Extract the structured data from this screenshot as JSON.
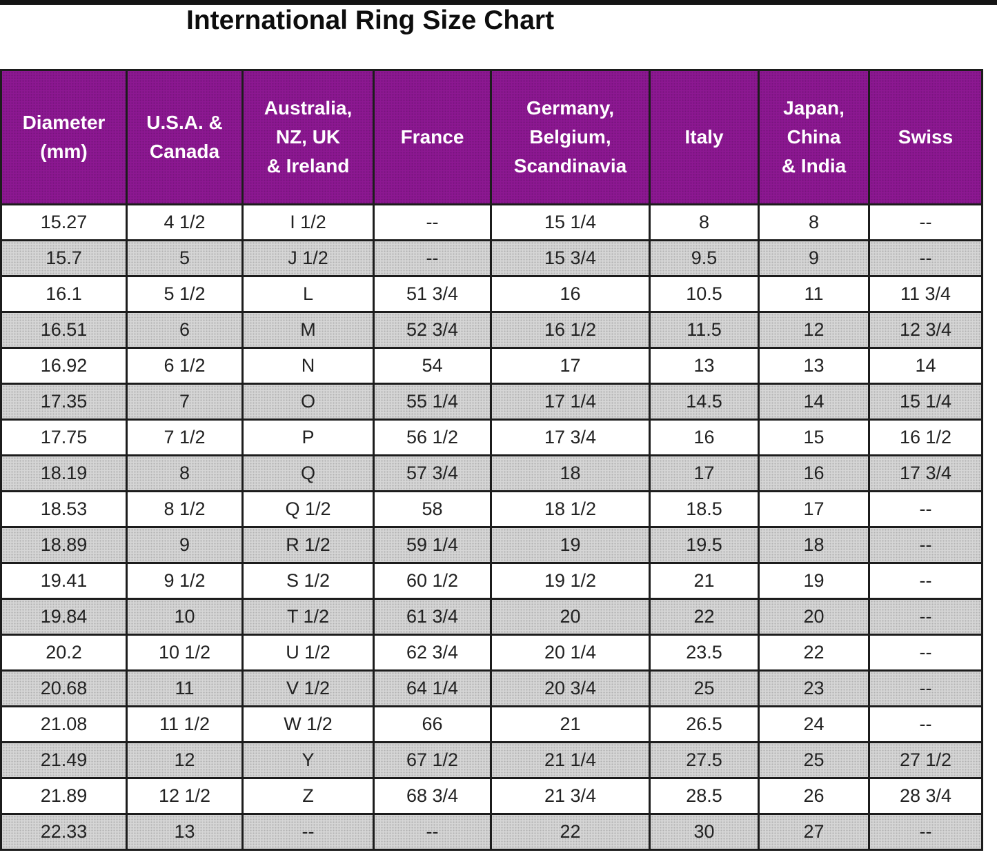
{
  "page_title": "International Ring Size Chart",
  "colors": {
    "header_bg": "#8D1892",
    "header_text": "#FFFFFF",
    "alt_row_bg": "#D6D6D6",
    "border": "#1C1C1C",
    "cell_text": "#222222"
  },
  "chart_data": {
    "type": "table",
    "title": "International Ring Size Chart",
    "columns": [
      "Diameter\n(mm)",
      "U.S.A. &\nCanada",
      "Australia,\nNZ, UK\n& Ireland",
      "France",
      "Germany,\nBelgium,\nScandinavia",
      "Italy",
      "Japan,\nChina\n& India",
      "Swiss"
    ],
    "rows": [
      [
        "15.27",
        "4 1/2",
        "I 1/2",
        "--",
        "15 1/4",
        "8",
        "8",
        "--"
      ],
      [
        "15.7",
        "5",
        "J 1/2",
        "--",
        "15 3/4",
        "9.5",
        "9",
        "--"
      ],
      [
        "16.1",
        "5 1/2",
        "L",
        "51 3/4",
        "16",
        "10.5",
        "11",
        "11 3/4"
      ],
      [
        "16.51",
        "6",
        "M",
        "52 3/4",
        "16 1/2",
        "11.5",
        "12",
        "12 3/4"
      ],
      [
        "16.92",
        "6 1/2",
        "N",
        "54",
        "17",
        "13",
        "13",
        "14"
      ],
      [
        "17.35",
        "7",
        "O",
        "55 1/4",
        "17 1/4",
        "14.5",
        "14",
        "15 1/4"
      ],
      [
        "17.75",
        "7 1/2",
        "P",
        "56 1/2",
        "17 3/4",
        "16",
        "15",
        "16 1/2"
      ],
      [
        "18.19",
        "8",
        "Q",
        "57 3/4",
        "18",
        "17",
        "16",
        "17 3/4"
      ],
      [
        "18.53",
        "8 1/2",
        "Q 1/2",
        "58",
        "18 1/2",
        "18.5",
        "17",
        "--"
      ],
      [
        "18.89",
        "9",
        "R 1/2",
        "59 1/4",
        "19",
        "19.5",
        "18",
        "--"
      ],
      [
        "19.41",
        "9 1/2",
        "S 1/2",
        "60 1/2",
        "19 1/2",
        "21",
        "19",
        "--"
      ],
      [
        "19.84",
        "10",
        "T 1/2",
        "61 3/4",
        "20",
        "22",
        "20",
        "--"
      ],
      [
        "20.2",
        "10 1/2",
        "U 1/2",
        "62 3/4",
        "20 1/4",
        "23.5",
        "22",
        "--"
      ],
      [
        "20.68",
        "11",
        "V 1/2",
        "64 1/4",
        "20 3/4",
        "25",
        "23",
        "--"
      ],
      [
        "21.08",
        "11 1/2",
        "W 1/2",
        "66",
        "21",
        "26.5",
        "24",
        "--"
      ],
      [
        "21.49",
        "12",
        "Y",
        "67 1/2",
        "21 1/4",
        "27.5",
        "25",
        "27 1/2"
      ],
      [
        "21.89",
        "12 1/2",
        "Z",
        "68 3/4",
        "21 3/4",
        "28.5",
        "26",
        "28 3/4"
      ],
      [
        "22.33",
        "13",
        "--",
        "--",
        "22",
        "30",
        "27",
        "--"
      ]
    ]
  }
}
